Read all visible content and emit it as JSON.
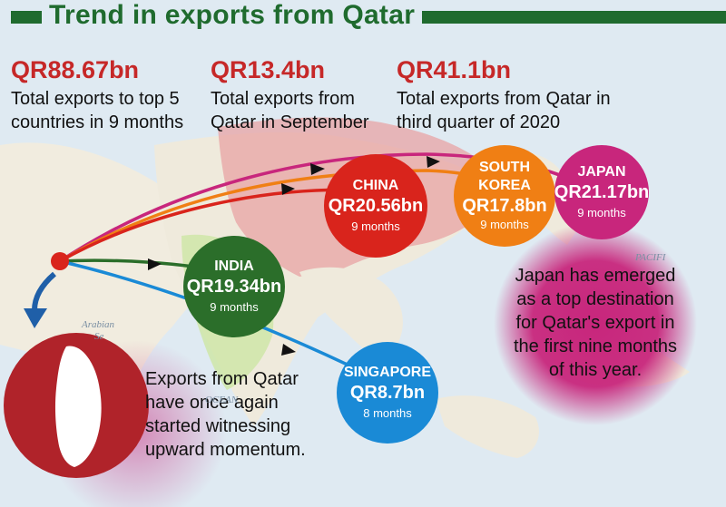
{
  "title": "Trend in exports from Qatar",
  "stats": [
    {
      "value": "QR88.67bn",
      "lines": [
        "Total exports to top 5",
        "countries in 9 months"
      ]
    },
    {
      "value": "QR13.4bn",
      "lines": [
        "Total exports from",
        "Qatar in September"
      ]
    },
    {
      "value": "QR41.1bn",
      "lines": [
        "Total exports from Qatar in",
        "third quarter of 2020"
      ]
    }
  ],
  "destinations": [
    {
      "name": "CHINA",
      "amount": "QR20.56bn",
      "period": "9 months",
      "color": "#d9241c"
    },
    {
      "name_lines": [
        "SOUTH",
        "KOREA"
      ],
      "amount": "QR17.8bn",
      "period": "9 months",
      "color": "#f07f14"
    },
    {
      "name": "JAPAN",
      "amount": "QR21.17bn",
      "period": "9 months",
      "color": "#c8267c"
    },
    {
      "name": "INDIA",
      "amount": "QR19.34bn",
      "period": "9 months",
      "color": "#2b6e2a"
    },
    {
      "name": "SINGAPORE",
      "amount": "QR8.7bn",
      "period": "8 months",
      "color": "#1a8ad6"
    }
  ],
  "notes": {
    "qatar": [
      "Exports from Qatar",
      "have once again",
      "started witnessing",
      "upward momentum."
    ],
    "japan": [
      "Japan has emerged",
      "as a top destination",
      "for Qatar's export in",
      "the first nine months",
      "of this year."
    ]
  },
  "map_labels": [
    "Arabian",
    "Se",
    "OCEAN",
    "PACIFI"
  ]
}
